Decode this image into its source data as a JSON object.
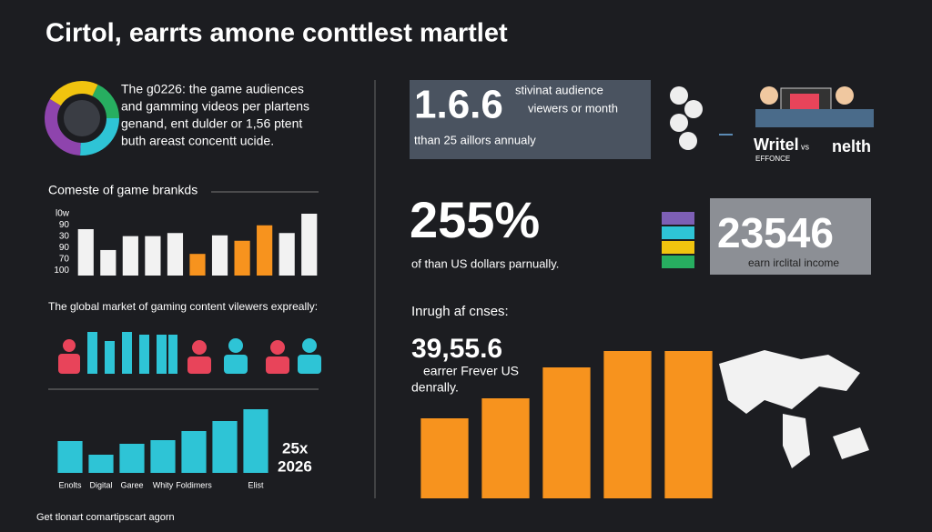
{
  "title": "Cirtol, earrts amone conttlest martlet",
  "intro": {
    "lines": [
      "The g0226: the game audiences",
      "and gamming videos per plartens",
      "genand, ent dulder or 1,56 ptent",
      "buth areast concentt ucide."
    ]
  },
  "section_1": {
    "heading": "Comeste of game brankds",
    "axis_labels": [
      "l0w",
      "90",
      "30",
      "90",
      "70",
      "100"
    ]
  },
  "section_2": {
    "heading": "The global market of gaming content vilewers expreally:"
  },
  "section_3": {
    "note_lines": [
      "25x",
      "2026"
    ]
  },
  "footer": "Get tlonart comartipscart agorn",
  "stat_box": {
    "value": "1.6.6",
    "lines": [
      "stivinat audience",
      "viewers or month"
    ],
    "sub": "tthan 25 aillors annualy"
  },
  "versus": {
    "left": "Writel",
    "left_sub": "EFFONCE",
    "mid": "vs",
    "right": "nelth"
  },
  "percent": {
    "value": "255%",
    "caption": "of than US dollars parnually."
  },
  "income": {
    "value": "23546",
    "caption": "earn irclital income"
  },
  "growth": {
    "heading": "Inrugh af cnses:",
    "value": "39,55.6",
    "lines": [
      "earrer Frever US",
      "denrally."
    ]
  },
  "chart_data": [
    {
      "type": "bar",
      "values": [
        60,
        33,
        51,
        51,
        55,
        28,
        52,
        45,
        65,
        55,
        80
      ],
      "colors": [
        "#f2f2f2",
        "#f2f2f2",
        "#f2f2f2",
        "#f2f2f2",
        "#f2f2f2",
        "#f7931e",
        "#f2f2f2",
        "#f7931e",
        "#f7931e",
        "#f2f2f2",
        "#f2f2f2"
      ],
      "ylim": [
        0,
        100
      ]
    },
    {
      "type": "bar",
      "categories": [
        "Enolts",
        "Digital",
        "Garee",
        "Whity",
        "Foldimers",
        null,
        "Elist"
      ],
      "values": [
        35,
        20,
        32,
        36,
        46,
        57,
        70
      ],
      "color": "#2ec4d6",
      "ylim": [
        0,
        80
      ]
    },
    {
      "type": "bar",
      "values": [
        88,
        110,
        144,
        162,
        162
      ],
      "color": "#f7931e",
      "ylim": [
        0,
        170
      ]
    }
  ]
}
